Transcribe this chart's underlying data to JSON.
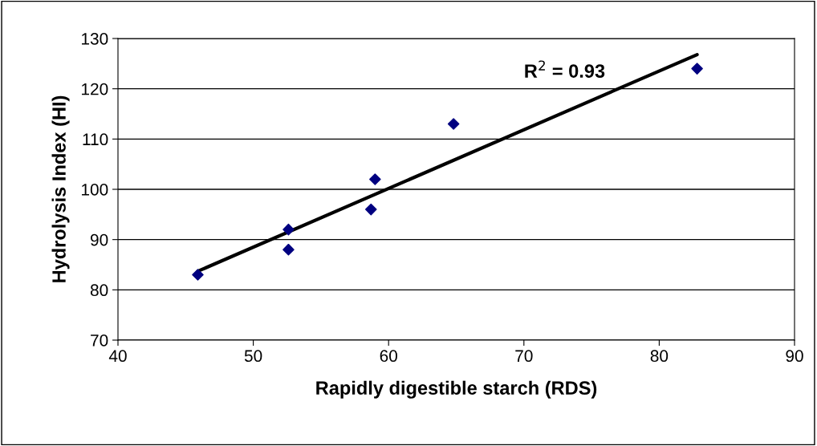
{
  "chart_data": {
    "type": "scatter",
    "xlabel": "Rapidly digestible starch (RDS)",
    "ylabel": "Hydrolysis Index (HI)",
    "xlim": [
      40,
      90
    ],
    "xticks": [
      40,
      50,
      60,
      70,
      80,
      90
    ],
    "ylim": [
      70,
      130
    ],
    "yticks": [
      70,
      80,
      90,
      100,
      110,
      120,
      130
    ],
    "grid": "y",
    "legend": false,
    "annotations": [
      "R$^{2}$ = 0.93"
    ],
    "series": [
      {
        "color": "#000080",
        "marker": "diamond",
        "x": [
          45.9,
          52.6,
          52.6,
          58.7,
          59.0,
          64.8,
          82.8
        ],
        "values": [
          83,
          92,
          88,
          96,
          102,
          113,
          124
        ]
      },
      {
        "type": "line",
        "color": "#000000",
        "marker": "none",
        "line_style": "solid",
        "x": [
          45.9,
          82.8
        ],
        "values": [
          83.7,
          126.8
        ]
      }
    ]
  }
}
